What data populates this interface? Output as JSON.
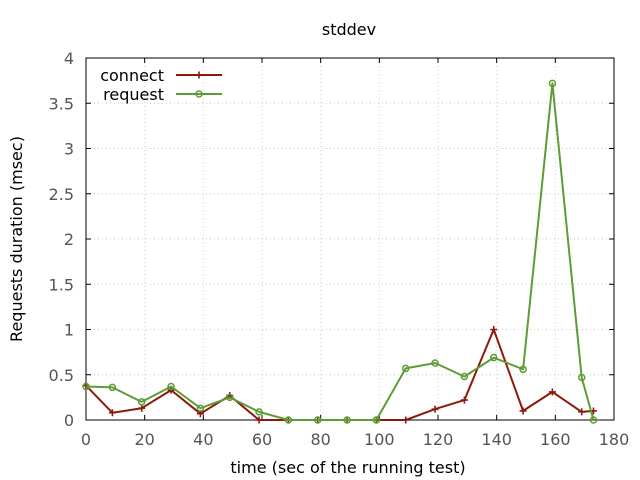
{
  "chart_data": {
    "type": "line",
    "title": "stddev",
    "xlabel": "time (sec of the running test)",
    "ylabel": "Requests duration (msec)",
    "xlim": [
      0,
      180
    ],
    "ylim": [
      0,
      4
    ],
    "xticks": [
      "0",
      "20",
      "40",
      "60",
      "80",
      "100",
      "120",
      "140",
      "160",
      "180"
    ],
    "yticks": [
      "0",
      "0.5",
      "1",
      "1.5",
      "2",
      "2.5",
      "3",
      "3.5",
      "4"
    ],
    "xtick_values": [
      0,
      20,
      40,
      60,
      80,
      100,
      120,
      140,
      160,
      180
    ],
    "ytick_values": [
      0,
      0.5,
      1,
      1.5,
      2,
      2.5,
      3,
      3.5,
      4
    ],
    "grid": true,
    "legend_position": "top-left",
    "series": [
      {
        "name": "connect",
        "color": "#8b1a0e",
        "marker": "plus",
        "x": [
          0,
          9,
          19,
          29,
          39,
          49,
          59,
          69,
          79,
          89,
          99,
          109,
          119,
          129,
          139,
          149,
          159,
          169,
          173
        ],
        "y": [
          0.38,
          0.08,
          0.13,
          0.33,
          0.07,
          0.27,
          0.0,
          0.0,
          0.0,
          0.0,
          0.0,
          0.0,
          0.12,
          0.22,
          1.0,
          0.1,
          0.31,
          0.09,
          0.1
        ]
      },
      {
        "name": "request",
        "color": "#5e9c36",
        "marker": "circle",
        "x": [
          0,
          9,
          19,
          29,
          39,
          49,
          59,
          69,
          79,
          89,
          99,
          109,
          119,
          129,
          139,
          149,
          159,
          169,
          173
        ],
        "y": [
          0.37,
          0.36,
          0.2,
          0.37,
          0.13,
          0.25,
          0.09,
          0.0,
          0.0,
          0.0,
          0.0,
          0.57,
          0.63,
          0.48,
          0.69,
          0.56,
          3.72,
          0.47,
          0.0
        ]
      }
    ]
  }
}
